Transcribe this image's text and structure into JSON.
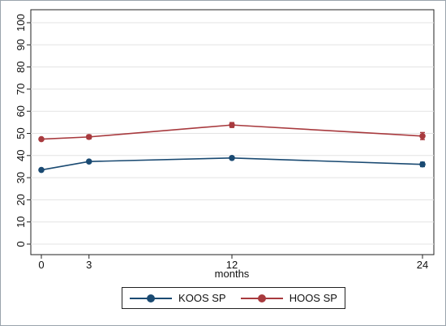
{
  "chart_data": {
    "type": "line",
    "xlabel": "months",
    "ylabel": "",
    "x": [
      0,
      3,
      12,
      24
    ],
    "xticks": [
      "0",
      "3",
      "12",
      "24"
    ],
    "xlim": [
      0,
      24
    ],
    "ylim": [
      0,
      100
    ],
    "yticks": [
      "0",
      "10",
      "20",
      "30",
      "40",
      "50",
      "60",
      "70",
      "80",
      "90",
      "100"
    ],
    "grid": true,
    "legend_position": "bottom",
    "series": [
      {
        "name": "KOOS SP",
        "color": "#1a4a72",
        "values": [
          33.5,
          37.3,
          38.9,
          36.0
        ],
        "err": [
          0.4,
          0.6,
          0.7,
          1.0
        ]
      },
      {
        "name": "HOOS SP",
        "color": "#a83a3e",
        "values": [
          47.4,
          48.4,
          53.8,
          48.8
        ],
        "err": [
          0.4,
          0.9,
          1.1,
          1.6
        ]
      }
    ]
  }
}
